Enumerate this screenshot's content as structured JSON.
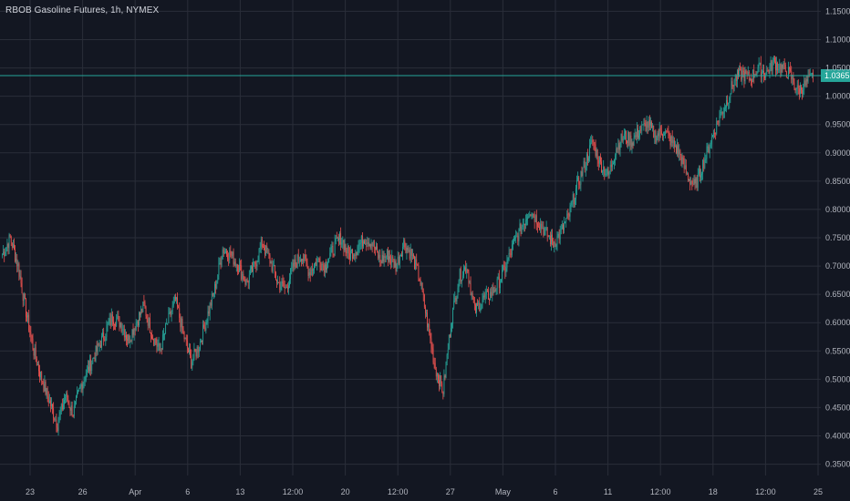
{
  "chart_title": "RBOB Gasoline Futures, 1h, NYMEX",
  "colors": {
    "background": "#131722",
    "grid": "#2a2e39",
    "up": "#26a69a",
    "down": "#ef5350",
    "last_price_line": "#26a69a",
    "axis_text": "#b2b5be"
  },
  "chart_data": {
    "type": "candlestick",
    "title": "RBOB Gasoline Futures, 1h, NYMEX",
    "y_axis": {
      "position": "right",
      "ylim": [
        0.33,
        1.17
      ],
      "ticks": [
        "1.1500",
        "1.1000",
        "1.0500",
        "1.0000",
        "0.9500",
        "0.9000",
        "0.8500",
        "0.8000",
        "0.7500",
        "0.7000",
        "0.6500",
        "0.6000",
        "0.5500",
        "0.5000",
        "0.4500",
        "0.4000",
        "0.3500"
      ],
      "tick_values": [
        1.15,
        1.1,
        1.05,
        1.0,
        0.95,
        0.9,
        0.85,
        0.8,
        0.75,
        0.7,
        0.65,
        0.6,
        0.55,
        0.5,
        0.45,
        0.4,
        0.35
      ]
    },
    "x_axis": {
      "ticks": [
        "23",
        "26",
        "Apr",
        "6",
        "13",
        "12:00",
        "20",
        "12:00",
        "27",
        "May",
        "6",
        "11",
        "12:00",
        "18",
        "12:00",
        "25"
      ],
      "grid": true
    },
    "last_price": 1.0365,
    "last_price_label": "1.0365",
    "series_close": [
      0.72,
      0.75,
      0.7,
      0.62,
      0.55,
      0.5,
      0.46,
      0.42,
      0.47,
      0.44,
      0.49,
      0.52,
      0.55,
      0.58,
      0.61,
      0.6,
      0.57,
      0.6,
      0.63,
      0.58,
      0.55,
      0.6,
      0.64,
      0.58,
      0.53,
      0.56,
      0.61,
      0.66,
      0.73,
      0.72,
      0.7,
      0.67,
      0.7,
      0.74,
      0.71,
      0.67,
      0.66,
      0.7,
      0.72,
      0.69,
      0.71,
      0.7,
      0.73,
      0.75,
      0.72,
      0.73,
      0.75,
      0.74,
      0.71,
      0.72,
      0.7,
      0.74,
      0.72,
      0.68,
      0.6,
      0.52,
      0.48,
      0.6,
      0.68,
      0.7,
      0.62,
      0.64,
      0.65,
      0.67,
      0.7,
      0.74,
      0.77,
      0.8,
      0.78,
      0.76,
      0.74,
      0.76,
      0.79,
      0.84,
      0.88,
      0.92,
      0.88,
      0.86,
      0.91,
      0.93,
      0.92,
      0.94,
      0.95,
      0.93,
      0.94,
      0.92,
      0.9,
      0.86,
      0.84,
      0.88,
      0.92,
      0.96,
      0.99,
      1.03,
      1.04,
      1.03,
      1.05,
      1.04,
      1.06,
      1.05,
      1.04,
      1.01,
      1.02,
      1.0365
    ]
  }
}
